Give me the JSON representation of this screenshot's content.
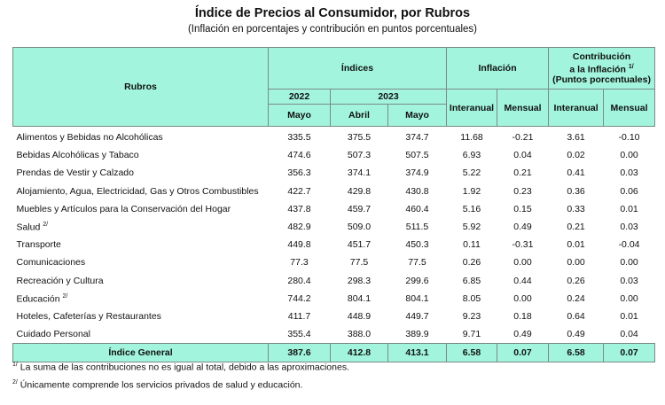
{
  "title": "Índice de Precios al Consumidor, por Rubros",
  "subtitle": "(Inflación en porcentajes y contribución en puntos porcentuales)",
  "header": {
    "rubros": "Rubros",
    "indices": "Índices",
    "inflacion": "Inflación",
    "contribucion_l1": "Contribución",
    "contribucion_l2": "a la Inflación",
    "contribucion_sup": "1/",
    "contribucion_l3": "(Puntos porcentuales)",
    "year1": "2022",
    "year2": "2023",
    "mayo": "Mayo",
    "abril": "Abril",
    "interanual": "Interanual",
    "mensual": "Mensual"
  },
  "rows": [
    {
      "name": "Alimentos y Bebidas no Alcohólicas",
      "sup": "",
      "v": [
        "335.5",
        "375.5",
        "374.7",
        "11.68",
        "-0.21",
        "3.61",
        "-0.10"
      ]
    },
    {
      "name": "Bebidas Alcohólicas y Tabaco",
      "sup": "",
      "v": [
        "474.6",
        "507.3",
        "507.5",
        "6.93",
        "0.04",
        "0.02",
        "0.00"
      ]
    },
    {
      "name": "Prendas de Vestir y Calzado",
      "sup": "",
      "v": [
        "356.3",
        "374.1",
        "374.9",
        "5.22",
        "0.21",
        "0.41",
        "0.03"
      ]
    },
    {
      "name": "Alojamiento, Agua, Electricidad, Gas y Otros Combustibles",
      "sup": "",
      "v": [
        "422.7",
        "429.8",
        "430.8",
        "1.92",
        "0.23",
        "0.36",
        "0.06"
      ]
    },
    {
      "name": "Muebles y Artículos para la Conservación del Hogar",
      "sup": "",
      "v": [
        "437.8",
        "459.7",
        "460.4",
        "5.16",
        "0.15",
        "0.33",
        "0.01"
      ]
    },
    {
      "name": "Salud",
      "sup": "2/",
      "v": [
        "482.9",
        "509.0",
        "511.5",
        "5.92",
        "0.49",
        "0.21",
        "0.03"
      ]
    },
    {
      "name": "Transporte",
      "sup": "",
      "v": [
        "449.8",
        "451.7",
        "450.3",
        "0.11",
        "-0.31",
        "0.01",
        "-0.04"
      ]
    },
    {
      "name": "Comunicaciones",
      "sup": "",
      "v": [
        "77.3",
        "77.5",
        "77.5",
        "0.26",
        "0.00",
        "0.00",
        "0.00"
      ]
    },
    {
      "name": "Recreación y Cultura",
      "sup": "",
      "v": [
        "280.4",
        "298.3",
        "299.6",
        "6.85",
        "0.44",
        "0.26",
        "0.03"
      ]
    },
    {
      "name": "Educación",
      "sup": "2/",
      "v": [
        "744.2",
        "804.1",
        "804.1",
        "8.05",
        "0.00",
        "0.24",
        "0.00"
      ]
    },
    {
      "name": "Hoteles, Cafeterías y Restaurantes",
      "sup": "",
      "v": [
        "411.7",
        "448.9",
        "449.7",
        "9.23",
        "0.18",
        "0.64",
        "0.01"
      ]
    },
    {
      "name": "Cuidado Personal",
      "sup": "",
      "v": [
        "355.4",
        "388.0",
        "389.9",
        "9.71",
        "0.49",
        "0.49",
        "0.04"
      ]
    }
  ],
  "total": {
    "name": "Índice General",
    "v": [
      "387.6",
      "412.8",
      "413.1",
      "6.58",
      "0.07",
      "6.58",
      "0.07"
    ]
  },
  "footnotes": [
    {
      "mark": "1/",
      "text": "La suma de las contribuciones no es igual al total, debido a las aproximaciones."
    },
    {
      "mark": "2/",
      "text": "Únicamente comprende los servicios privados de salud y educación."
    }
  ],
  "colors": {
    "header_bg": "#a2f5dc"
  }
}
